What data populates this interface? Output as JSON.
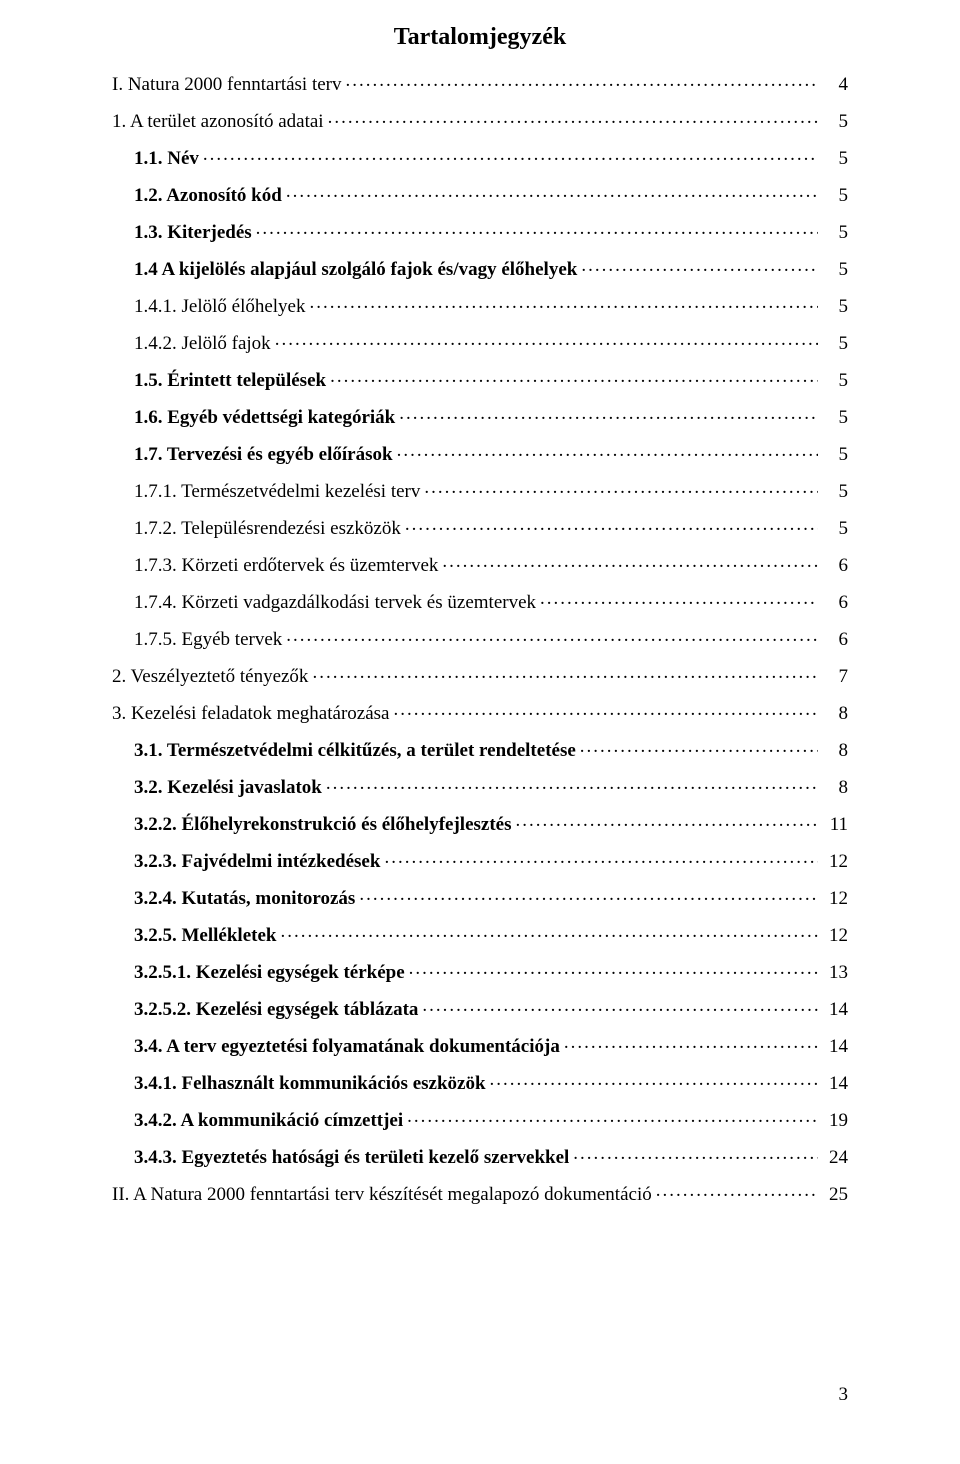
{
  "title": "Tartalomjegyzék",
  "page_number": "3",
  "toc": [
    {
      "label": "I. Natura 2000 fenntartási terv",
      "page": "4",
      "indent": 0,
      "bold": false
    },
    {
      "label": "1. A terület azonosító adatai",
      "page": "5",
      "indent": 0,
      "bold": false
    },
    {
      "label": "1.1. Név",
      "page": "5",
      "indent": 1,
      "bold": true
    },
    {
      "label": "1.2. Azonosító kód",
      "page": "5",
      "indent": 1,
      "bold": true
    },
    {
      "label": "1.3. Kiterjedés",
      "page": "5",
      "indent": 1,
      "bold": true
    },
    {
      "label": "1.4 A kijelölés alapjául szolgáló fajok és/vagy élőhelyek",
      "page": "5",
      "indent": 1,
      "bold": true
    },
    {
      "label": "1.4.1. Jelölő élőhelyek",
      "page": "5",
      "indent": 1,
      "bold": false
    },
    {
      "label": "1.4.2. Jelölő fajok",
      "page": "5",
      "indent": 1,
      "bold": false
    },
    {
      "label": "1.5. Érintett települések",
      "page": "5",
      "indent": 1,
      "bold": true
    },
    {
      "label": "1.6. Egyéb védettségi kategóriák",
      "page": "5",
      "indent": 1,
      "bold": true
    },
    {
      "label": "1.7. Tervezési és egyéb előírások",
      "page": "5",
      "indent": 1,
      "bold": true
    },
    {
      "label": "1.7.1. Természetvédelmi kezelési terv",
      "page": "5",
      "indent": 1,
      "bold": false
    },
    {
      "label": "1.7.2. Településrendezési eszközök",
      "page": "5",
      "indent": 1,
      "bold": false
    },
    {
      "label": "1.7.3. Körzeti erdőtervek és üzemtervek",
      "page": "6",
      "indent": 1,
      "bold": false
    },
    {
      "label": "1.7.4. Körzeti vadgazdálkodási tervek és üzemtervek",
      "page": "6",
      "indent": 1,
      "bold": false
    },
    {
      "label": "1.7.5. Egyéb tervek",
      "page": "6",
      "indent": 1,
      "bold": false
    },
    {
      "label": "2. Veszélyeztető tényezők",
      "page": "7",
      "indent": 0,
      "bold": false
    },
    {
      "label": "3. Kezelési feladatok meghatározása",
      "page": "8",
      "indent": 0,
      "bold": false
    },
    {
      "label": "3.1. Természetvédelmi célkitűzés, a terület rendeltetése",
      "page": "8",
      "indent": 1,
      "bold": true
    },
    {
      "label": "3.2. Kezelési javaslatok",
      "page": "8",
      "indent": 1,
      "bold": true
    },
    {
      "label": "3.2.2. Élőhelyrekonstrukció és élőhelyfejlesztés",
      "page": "11",
      "indent": 1,
      "bold": true
    },
    {
      "label": "3.2.3. Fajvédelmi intézkedések",
      "page": "12",
      "indent": 1,
      "bold": true
    },
    {
      "label": "3.2.4. Kutatás, monitorozás",
      "page": "12",
      "indent": 1,
      "bold": true
    },
    {
      "label": "3.2.5. Mellékletek",
      "page": "12",
      "indent": 1,
      "bold": true
    },
    {
      "label": "3.2.5.1. Kezelési egységek térképe",
      "page": "13",
      "indent": 1,
      "bold": true
    },
    {
      "label": "3.2.5.2. Kezelési egységek táblázata",
      "page": "14",
      "indent": 1,
      "bold": true
    },
    {
      "label": "3.4. A terv egyeztetési folyamatának dokumentációja",
      "page": "14",
      "indent": 1,
      "bold": true
    },
    {
      "label": "3.4.1.    Felhasznált kommunikációs eszközök",
      "page": "14",
      "indent": 1,
      "bold": true
    },
    {
      "label": "3.4.2.    A kommunikáció címzettjei",
      "page": "19",
      "indent": 1,
      "bold": true
    },
    {
      "label": "3.4.3.    Egyeztetés hatósági és területi kezelő szervekkel",
      "page": "24",
      "indent": 1,
      "bold": true
    },
    {
      "label": "II. A Natura 2000 fenntartási terv készítését megalapozó dokumentáció",
      "page": "25",
      "indent": 0,
      "bold": false
    }
  ]
}
